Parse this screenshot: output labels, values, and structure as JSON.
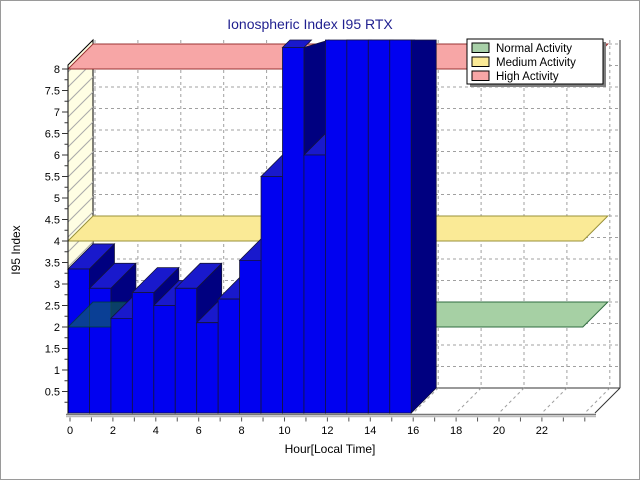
{
  "window": {
    "background": "#ffffff",
    "border_color": "#9a9a9a"
  },
  "title": {
    "text": "Ionospheric Index I95 RTX",
    "color": "#1f1f8f"
  },
  "axes": {
    "x": {
      "title": "Hour[Local Time]",
      "tick_labels": [
        "0",
        "2",
        "4",
        "6",
        "8",
        "10",
        "12",
        "14",
        "16",
        "18",
        "20",
        "22"
      ],
      "hours_shown": 24
    },
    "y": {
      "title": "I95 Index",
      "tick_labels": [
        "0.5",
        "1",
        "1.5",
        "2",
        "2.5",
        "3",
        "3.5",
        "4",
        "4.5",
        "5",
        "5.5",
        "6",
        "6.5",
        "7",
        "7.5",
        "8"
      ],
      "major_step": 0.5,
      "minor_step": 0.25
    }
  },
  "legend": {
    "items": [
      {
        "label": "Normal Activity",
        "color": "#a8d0a8",
        "border": "#000000"
      },
      {
        "label": "Medium Activity",
        "color": "#fbea96",
        "border": "#000000"
      },
      {
        "label": "High Activity",
        "color": "#f7a6a6",
        "border": "#000000"
      }
    ]
  },
  "chart_data": {
    "type": "bar",
    "title": "Ionospheric Index I95 RTX",
    "xlabel": "Hour[Local Time]",
    "ylabel": "I95 Index",
    "categories": [
      0,
      1,
      2,
      3,
      4,
      5,
      6,
      7,
      8,
      9,
      10,
      11,
      12,
      13,
      14,
      15
    ],
    "values": [
      3.35,
      2.9,
      2.2,
      2.8,
      2.5,
      2.9,
      2.1,
      2.65,
      3.55,
      5.5,
      8.5,
      6.0,
      8.7,
      8.7,
      8.7,
      8.7
    ],
    "clipped_at_top_hours": [
      12,
      13,
      14,
      15
    ],
    "ylim": [
      0,
      8.1
    ],
    "xlim": [
      0,
      24
    ],
    "grid": "dashed",
    "legend_position": "top-right",
    "bands": [
      {
        "label": "Normal Activity",
        "value": 2,
        "fill": "#a6d0a4",
        "border": "#2f6b3f",
        "overlay_over_bars_hours": [
          0,
          1
        ]
      },
      {
        "label": "Medium Activity",
        "value": 4,
        "fill": "#faea96",
        "border": "#99913a"
      },
      {
        "label": "High Activity",
        "value": 8,
        "fill": "#f7a6a6",
        "border": "#993333"
      }
    ],
    "bar_colors": {
      "front": "#0101f0",
      "side": "#000080",
      "top": "#1919cc",
      "outline": "#14143a"
    },
    "wall_color": "#fffee3",
    "overlay_color": "rgba(16,105,88,0.60)"
  }
}
